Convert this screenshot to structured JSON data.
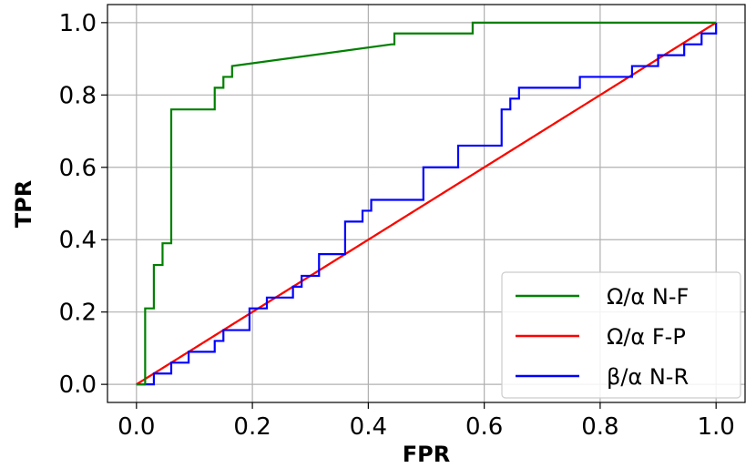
{
  "chart_data": {
    "type": "line",
    "title": "",
    "xlabel": "FPR",
    "ylabel": "TPR",
    "xlim": [
      -0.05,
      1.05
    ],
    "ylim": [
      -0.05,
      1.05
    ],
    "xticks": [
      0.0,
      0.2,
      0.4,
      0.6,
      0.8,
      1.0
    ],
    "yticks": [
      0.0,
      0.2,
      0.4,
      0.6,
      0.8,
      1.0
    ],
    "xtick_labels": [
      "0.0",
      "0.2",
      "0.4",
      "0.6",
      "0.8",
      "1.0"
    ],
    "ytick_labels": [
      "0.0",
      "0.2",
      "0.4",
      "0.6",
      "0.8",
      "1.0"
    ],
    "grid": true,
    "legend_position": "bottom-right",
    "series": [
      {
        "name": "Ω/α N-F",
        "color": "#008000",
        "dash": false,
        "in_legend": true,
        "points": [
          [
            0.0,
            0.0
          ],
          [
            0.015,
            0.0
          ],
          [
            0.015,
            0.21
          ],
          [
            0.03,
            0.21
          ],
          [
            0.03,
            0.33
          ],
          [
            0.045,
            0.33
          ],
          [
            0.045,
            0.39
          ],
          [
            0.06,
            0.39
          ],
          [
            0.06,
            0.76
          ],
          [
            0.135,
            0.76
          ],
          [
            0.135,
            0.82
          ],
          [
            0.15,
            0.82
          ],
          [
            0.15,
            0.85
          ],
          [
            0.165,
            0.85
          ],
          [
            0.165,
            0.88
          ],
          [
            0.44,
            0.94
          ],
          [
            0.445,
            0.94
          ],
          [
            0.445,
            0.97
          ],
          [
            0.58,
            0.97
          ],
          [
            0.58,
            1.0
          ],
          [
            1.0,
            1.0
          ]
        ]
      },
      {
        "name": "Ω/α F-P",
        "color": "#ff0000",
        "dash": false,
        "in_legend": true,
        "points": [
          [
            0.0,
            0.0
          ],
          [
            1.0,
            1.0
          ]
        ]
      },
      {
        "name": "β/α N-R",
        "color": "#0000ff",
        "dash": false,
        "in_legend": true,
        "points": [
          [
            0.0,
            0.0
          ],
          [
            0.03,
            0.0
          ],
          [
            0.03,
            0.03
          ],
          [
            0.06,
            0.03
          ],
          [
            0.06,
            0.06
          ],
          [
            0.09,
            0.06
          ],
          [
            0.09,
            0.09
          ],
          [
            0.135,
            0.09
          ],
          [
            0.135,
            0.12
          ],
          [
            0.15,
            0.12
          ],
          [
            0.15,
            0.15
          ],
          [
            0.195,
            0.15
          ],
          [
            0.195,
            0.21
          ],
          [
            0.225,
            0.21
          ],
          [
            0.225,
            0.24
          ],
          [
            0.27,
            0.24
          ],
          [
            0.27,
            0.27
          ],
          [
            0.285,
            0.27
          ],
          [
            0.285,
            0.3
          ],
          [
            0.315,
            0.3
          ],
          [
            0.315,
            0.36
          ],
          [
            0.36,
            0.36
          ],
          [
            0.36,
            0.45
          ],
          [
            0.39,
            0.45
          ],
          [
            0.39,
            0.48
          ],
          [
            0.405,
            0.48
          ],
          [
            0.405,
            0.51
          ],
          [
            0.495,
            0.51
          ],
          [
            0.495,
            0.6
          ],
          [
            0.555,
            0.6
          ],
          [
            0.555,
            0.66
          ],
          [
            0.63,
            0.66
          ],
          [
            0.63,
            0.76
          ],
          [
            0.645,
            0.76
          ],
          [
            0.645,
            0.79
          ],
          [
            0.66,
            0.79
          ],
          [
            0.66,
            0.82
          ],
          [
            0.765,
            0.82
          ],
          [
            0.765,
            0.85
          ],
          [
            0.855,
            0.85
          ],
          [
            0.855,
            0.88
          ],
          [
            0.9,
            0.88
          ],
          [
            0.9,
            0.91
          ],
          [
            0.945,
            0.91
          ],
          [
            0.945,
            0.94
          ],
          [
            0.975,
            0.94
          ],
          [
            0.975,
            0.97
          ],
          [
            1.0,
            0.97
          ],
          [
            1.0,
            1.0
          ]
        ]
      },
      {
        "name": "",
        "color": "#c8b400",
        "dash": true,
        "in_legend": false,
        "points": [
          [
            0.0,
            0.0
          ],
          [
            1.0,
            1.0
          ]
        ]
      }
    ]
  }
}
